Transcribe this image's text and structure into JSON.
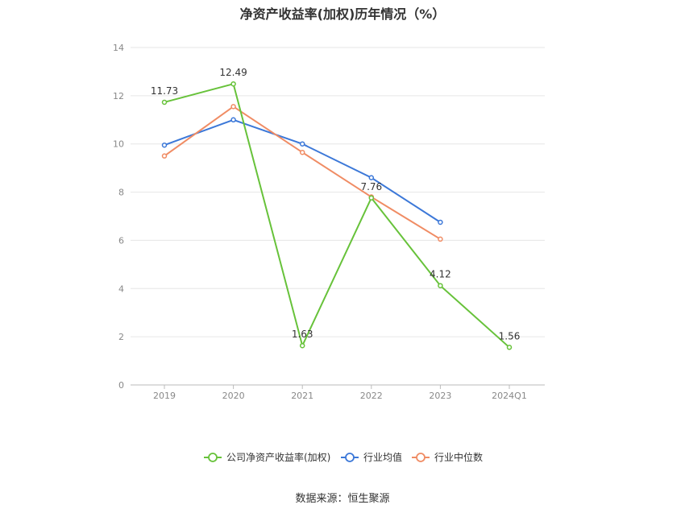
{
  "chart_data": {
    "type": "line",
    "title": "净资产收益率(加权)历年情况（%）",
    "categories": [
      "2019",
      "2020",
      "2021",
      "2022",
      "2023",
      "2024Q1"
    ],
    "ylim": [
      0,
      14
    ],
    "yticks": [
      0,
      2,
      4,
      6,
      8,
      10,
      12,
      14
    ],
    "grid": true,
    "legend_position": "bottom",
    "series": [
      {
        "name": "公司净资产收益率(加权)",
        "color": "#67c23a",
        "values": [
          11.73,
          12.49,
          1.63,
          7.76,
          4.12,
          1.56
        ],
        "labels": true
      },
      {
        "name": "行业均值",
        "color": "#3c78d8",
        "values": [
          9.95,
          11.0,
          10.0,
          8.6,
          6.75,
          null
        ],
        "labels": false
      },
      {
        "name": "行业中位数",
        "color": "#f08c64",
        "values": [
          9.5,
          11.55,
          9.65,
          7.8,
          6.05,
          null
        ],
        "labels": false
      }
    ]
  },
  "source": "数据来源：恒生聚源"
}
